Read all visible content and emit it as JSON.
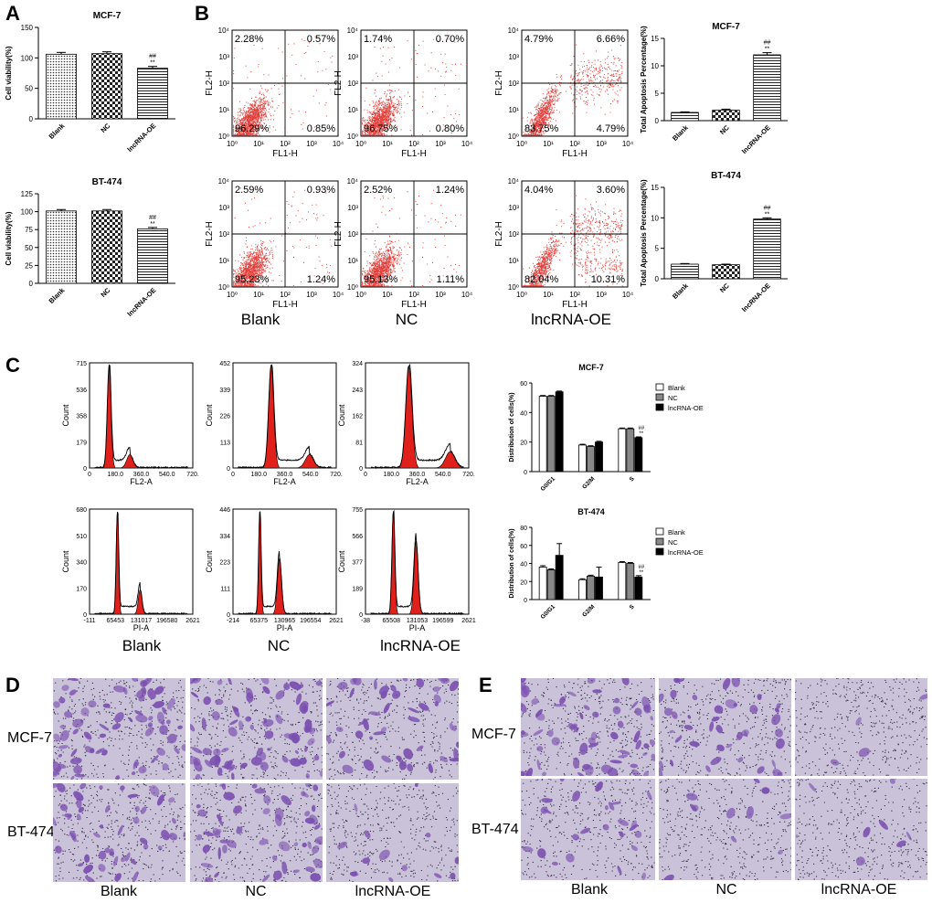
{
  "panel_labels": {
    "a": "A",
    "b": "B",
    "c": "C",
    "d": "D",
    "e": "E"
  },
  "condition_labels": [
    "Blank",
    "NC",
    "lncRNA-OE"
  ],
  "cell_lines": [
    "MCF-7",
    "BT-474"
  ],
  "significance": {
    "hash": "##",
    "star": "**"
  },
  "colors": {
    "red": "#e0201a",
    "purple": "#7b4fb0",
    "micro_bg": "#c9c2d8"
  },
  "chart_data": [
    {
      "id": "A_MCF7",
      "type": "bar",
      "title": "MCF-7",
      "categories": [
        "Blank",
        "NC",
        "lncRNA-OE"
      ],
      "values": [
        106,
        107,
        83
      ],
      "errors": [
        3,
        3,
        3
      ],
      "ylabel": "Cell viability(%)",
      "ylim": [
        0,
        150
      ],
      "yticks": [
        0,
        50,
        100,
        150
      ],
      "patterns": [
        "dots",
        "checks",
        "hlines"
      ],
      "annotation_on": 2
    },
    {
      "id": "A_BT474",
      "type": "bar",
      "title": "BT-474",
      "categories": [
        "Blank",
        "NC",
        "lncRNA-OE"
      ],
      "values": [
        101,
        101,
        76
      ],
      "errors": [
        2,
        2,
        2
      ],
      "ylabel": "Cell viability(%)",
      "ylim": [
        0,
        125
      ],
      "yticks": [
        0,
        25,
        50,
        75,
        100,
        125
      ],
      "patterns": [
        "dots",
        "checks",
        "hlines"
      ],
      "annotation_on": 2
    },
    {
      "id": "B_MCF7",
      "type": "bar",
      "title": "MCF-7",
      "categories": [
        "Blank",
        "NC",
        "lncRNA-OE"
      ],
      "values": [
        1.5,
        1.9,
        12
      ],
      "errors": [
        0.1,
        0.2,
        0.4
      ],
      "ylabel": "Total Apoptosis Percentage(%)",
      "ylim": [
        0,
        15
      ],
      "yticks": [
        0,
        5,
        10,
        15
      ],
      "patterns": [
        "hlines",
        "checks",
        "hlines"
      ],
      "annotation_on": 2
    },
    {
      "id": "B_BT474",
      "type": "bar",
      "title": "BT-474",
      "categories": [
        "Blank",
        "NC",
        "lncRNA-OE"
      ],
      "values": [
        2.4,
        2.3,
        9.8
      ],
      "errors": [
        0.1,
        0.1,
        0.2
      ],
      "ylabel": "Total Apoptosis Percentage(%)",
      "ylim": [
        0,
        15
      ],
      "yticks": [
        0,
        5,
        10,
        15
      ],
      "patterns": [
        "hlines",
        "checks",
        "hlines"
      ],
      "annotation_on": 2
    },
    {
      "id": "C_MCF7",
      "type": "bar",
      "title": "MCF-7",
      "categories": [
        "G0/G1",
        "G2/M",
        "S"
      ],
      "series": [
        {
          "name": "Blank",
          "values": [
            51,
            18,
            29
          ],
          "errors": [
            0.5,
            0.5,
            0.5
          ],
          "color": "#ffffff"
        },
        {
          "name": "NC",
          "values": [
            51,
            17,
            29
          ],
          "errors": [
            0.5,
            0.5,
            0.5
          ],
          "color": "#888888"
        },
        {
          "name": "lncRNA-OE",
          "values": [
            54,
            20,
            23
          ],
          "errors": [
            0.5,
            0.5,
            0.5
          ],
          "color": "#000000"
        }
      ],
      "ylabel": "Distribution of cells(%)",
      "ylim": [
        0,
        60
      ],
      "yticks": [
        0,
        20,
        40,
        60
      ],
      "annotation_on": [
        2,
        2
      ]
    },
    {
      "id": "C_BT474",
      "type": "bar",
      "title": "BT-474",
      "categories": [
        "G0/G1",
        "G2/M",
        "S"
      ],
      "series": [
        {
          "name": "Blank",
          "values": [
            36,
            22,
            41
          ],
          "errors": [
            1.5,
            1,
            1
          ],
          "color": "#ffffff"
        },
        {
          "name": "NC",
          "values": [
            33,
            26,
            40
          ],
          "errors": [
            1,
            1,
            1
          ],
          "color": "#888888"
        },
        {
          "name": "lncRNA-OE",
          "values": [
            49,
            25,
            25
          ],
          "errors": [
            13,
            11,
            1.5
          ],
          "color": "#000000"
        }
      ],
      "ylabel": "Distribution of cells(%)",
      "ylim": [
        0,
        80
      ],
      "yticks": [
        0,
        20,
        40,
        60,
        80
      ],
      "annotation_on": [
        2,
        2
      ]
    },
    {
      "id": "B_scatter",
      "type": "scatter",
      "xlabel": "FL1-H",
      "ylabel": "FL2-H",
      "log_decades": [
        0,
        4
      ],
      "tick_labels": [
        "10⁰",
        "10¹",
        "10²",
        "10³",
        "10⁴"
      ],
      "plots": [
        {
          "row": "MCF-7",
          "condition": "Blank",
          "quadrants": [
            "2.28%",
            "0.57%",
            "96.29%",
            "0.85%"
          ]
        },
        {
          "row": "MCF-7",
          "condition": "NC",
          "quadrants": [
            "1.74%",
            "0.70%",
            "96.75%",
            "0.80%"
          ]
        },
        {
          "row": "MCF-7",
          "condition": "lncRNA-OE",
          "quadrants": [
            "4.79%",
            "6.66%",
            "83.75%",
            "4.79%"
          ]
        },
        {
          "row": "BT-474",
          "condition": "Blank",
          "quadrants": [
            "2.59%",
            "0.93%",
            "95.23%",
            "1.24%"
          ]
        },
        {
          "row": "BT-474",
          "condition": "NC",
          "quadrants": [
            "2.52%",
            "1.24%",
            "95.13%",
            "1.11%"
          ]
        },
        {
          "row": "BT-474",
          "condition": "lncRNA-OE",
          "quadrants": [
            "4.04%",
            "3.60%",
            "82.04%",
            "10.31%"
          ]
        }
      ]
    },
    {
      "id": "C_histograms",
      "type": "area",
      "ylabel": "Count",
      "plots": [
        {
          "row": "MCF-7",
          "xlabel": "FL2-A",
          "yticks": [
            "715",
            "536",
            "358",
            "179",
            "0"
          ],
          "xticks": [
            "0",
            "180.0",
            "360.0",
            "540.0",
            "720."
          ],
          "peaks": [
            {
              "x": 0.19,
              "h": 1.0,
              "w": 0.018
            },
            {
              "x": 0.39,
              "h": 0.13,
              "w": 0.03
            }
          ]
        },
        {
          "row": "MCF-7",
          "xlabel": "FL2-A",
          "yticks": [
            "452",
            "339",
            "226",
            "113",
            "0"
          ],
          "xticks": [
            "0",
            "180.0",
            "360.0",
            "540.0",
            "720."
          ],
          "peaks": [
            {
              "x": 0.37,
              "h": 1.0,
              "w": 0.025
            },
            {
              "x": 0.74,
              "h": 0.13,
              "w": 0.04
            }
          ]
        },
        {
          "row": "MCF-7",
          "xlabel": "FL2-A",
          "yticks": [
            "324",
            "243",
            "162",
            "81",
            "0"
          ],
          "xticks": [
            "0",
            "180.0",
            "360.0",
            "540.0",
            "720."
          ],
          "peaks": [
            {
              "x": 0.42,
              "h": 1.0,
              "w": 0.03
            },
            {
              "x": 0.82,
              "h": 0.16,
              "w": 0.045
            }
          ]
        },
        {
          "row": "BT-474",
          "xlabel": "PI-A",
          "yticks": [
            "680",
            "510",
            "340",
            "170",
            "0"
          ],
          "xticks": [
            "-111",
            "65453",
            "131017",
            "196580",
            "2621"
          ],
          "peaks": [
            {
              "x": 0.27,
              "h": 1.0,
              "w": 0.012
            },
            {
              "x": 0.49,
              "h": 0.24,
              "w": 0.018
            }
          ]
        },
        {
          "row": "BT-474",
          "xlabel": "PI-A",
          "yticks": [
            "446",
            "334",
            "223",
            "111",
            "0"
          ],
          "xticks": [
            "-214",
            "65375",
            "130965",
            "196554",
            "2621"
          ],
          "peaks": [
            {
              "x": 0.26,
              "h": 1.0,
              "w": 0.012
            },
            {
              "x": 0.45,
              "h": 0.55,
              "w": 0.02
            }
          ]
        },
        {
          "row": "BT-474",
          "xlabel": "PI-A",
          "yticks": [
            "755",
            "566",
            "377",
            "189",
            "0"
          ],
          "xticks": [
            "-38",
            "65508",
            "131053",
            "196599",
            "2621"
          ],
          "peaks": [
            {
              "x": 0.27,
              "h": 1.0,
              "w": 0.014
            },
            {
              "x": 0.49,
              "h": 0.72,
              "w": 0.02
            }
          ]
        }
      ]
    }
  ]
}
